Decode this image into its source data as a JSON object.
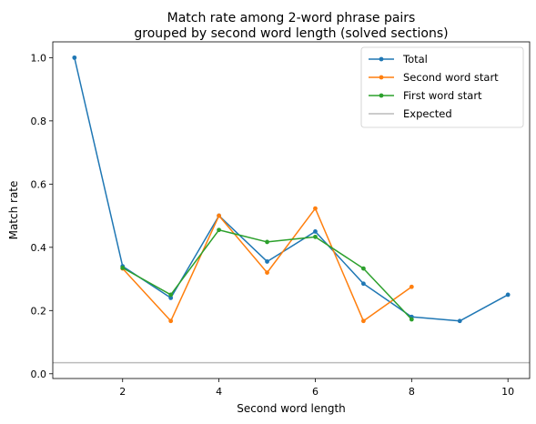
{
  "chart_data": {
    "type": "line",
    "title_line1": "Match rate among 2-word phrase pairs",
    "title_line2": "grouped by second word length (solved sections)",
    "xlabel": "Second word length",
    "ylabel": "Match rate",
    "xlim": [
      0.55,
      10.45
    ],
    "ylim": [
      -0.015,
      1.05
    ],
    "xticks": [
      2,
      4,
      6,
      8,
      10
    ],
    "yticks": [
      0.0,
      0.2,
      0.4,
      0.6,
      0.8,
      1.0
    ],
    "xtick_labels": [
      "2",
      "4",
      "6",
      "8",
      "10"
    ],
    "ytick_labels": [
      "0.0",
      "0.2",
      "0.4",
      "0.6",
      "0.8",
      "1.0"
    ],
    "grid": false,
    "legend_position": "upper right",
    "series": [
      {
        "name": "Total",
        "color": "#1f77b4",
        "x": [
          1,
          2,
          3,
          4,
          5,
          6,
          7,
          8,
          9,
          10
        ],
        "y": [
          1.0,
          0.34,
          0.24,
          0.5,
          0.355,
          0.45,
          0.285,
          0.18,
          0.167,
          0.25
        ]
      },
      {
        "name": "Second word start",
        "color": "#ff7f0e",
        "x": [
          2,
          3,
          4,
          5,
          6,
          7,
          8
        ],
        "y": [
          0.333,
          0.167,
          0.5,
          0.32,
          0.523,
          0.167,
          0.275
        ]
      },
      {
        "name": "First word start",
        "color": "#2ca02c",
        "x": [
          2,
          3,
          4,
          5,
          6,
          7,
          8
        ],
        "y": [
          0.335,
          0.25,
          0.455,
          0.417,
          0.433,
          0.333,
          0.172
        ]
      }
    ],
    "reference_line": {
      "name": "Expected",
      "color": "#bbbbbb",
      "y": 0.035
    }
  }
}
